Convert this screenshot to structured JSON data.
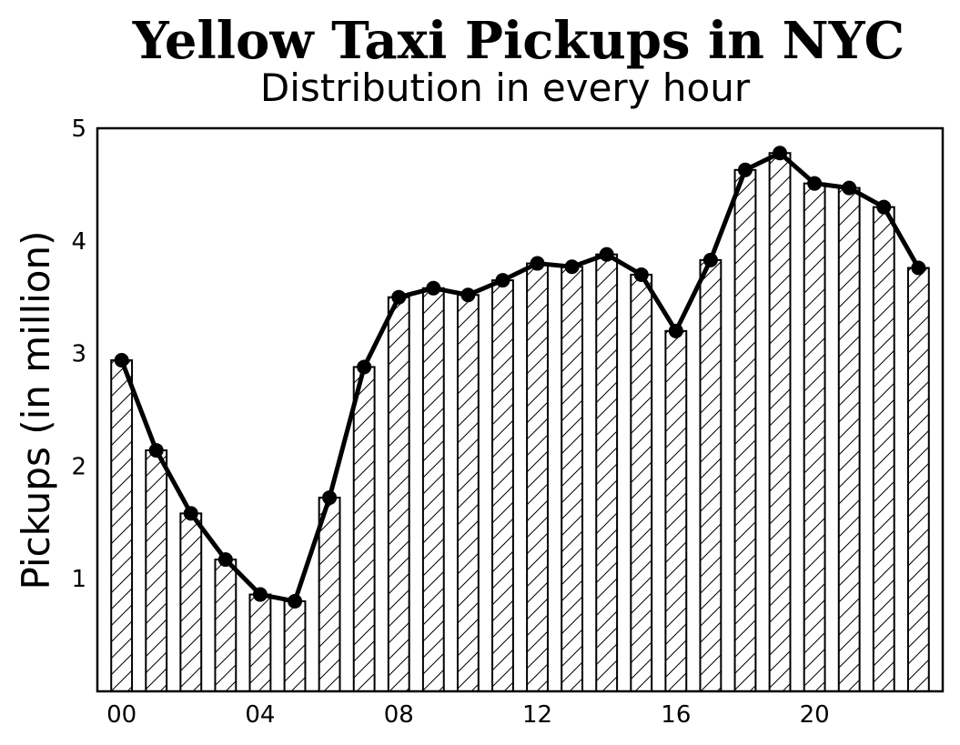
{
  "chart_data": {
    "type": "bar",
    "title": "Yellow Taxi Pickups in NYC",
    "subtitle": "Distribution in every hour",
    "xlabel": "",
    "ylabel": "Pickups (in million)",
    "x": [
      0,
      1,
      2,
      3,
      4,
      5,
      6,
      7,
      8,
      9,
      10,
      11,
      12,
      13,
      14,
      15,
      16,
      17,
      18,
      19,
      20,
      21,
      22,
      23
    ],
    "values": [
      2.94,
      2.14,
      1.58,
      1.17,
      0.86,
      0.8,
      1.72,
      2.88,
      3.5,
      3.58,
      3.52,
      3.65,
      3.8,
      3.77,
      3.88,
      3.7,
      3.2,
      3.83,
      4.63,
      4.78,
      4.51,
      4.47,
      4.3,
      3.76
    ],
    "line_overlay": true,
    "bar_hatch": "diagonal",
    "xticks": [
      0,
      4,
      8,
      12,
      16,
      20
    ],
    "xtick_labels": [
      "00",
      "04",
      "08",
      "12",
      "16",
      "20"
    ],
    "yticks": [
      1,
      2,
      3,
      4,
      5
    ],
    "ytick_labels": [
      "1",
      "2",
      "3",
      "4",
      "5"
    ],
    "ylim": [
      0,
      5
    ],
    "xlim": [
      -0.7,
      23.7
    ],
    "grid": false,
    "legend": "none",
    "colors": {
      "bar_fill": "#ffffff",
      "edge": "#000000",
      "line": "#000000"
    }
  }
}
